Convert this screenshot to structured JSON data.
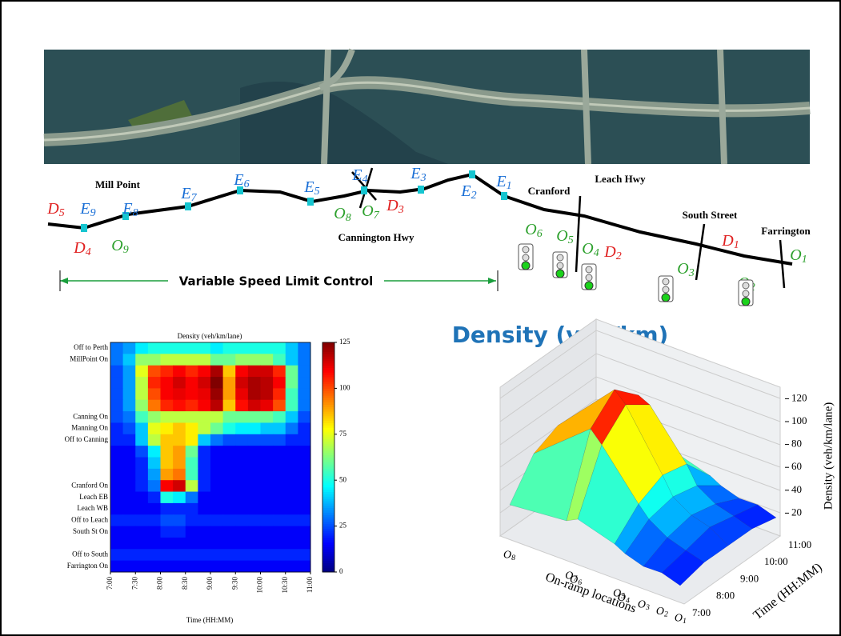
{
  "map": {
    "sensors": [
      {
        "base": "E",
        "sub": "9"
      },
      {
        "base": "E",
        "sub": "8"
      },
      {
        "base": "E",
        "sub": "7"
      },
      {
        "base": "E",
        "sub": "6"
      },
      {
        "base": "E",
        "sub": "5"
      },
      {
        "base": "E",
        "sub": "4"
      },
      {
        "base": "E",
        "sub": "3"
      },
      {
        "base": "E",
        "sub": "2"
      },
      {
        "base": "E",
        "sub": "1"
      }
    ],
    "offramps": [
      {
        "base": "D",
        "sub": "5"
      },
      {
        "base": "D",
        "sub": "4"
      },
      {
        "base": "D",
        "sub": "3"
      },
      {
        "base": "D",
        "sub": "2"
      },
      {
        "base": "D",
        "sub": "1"
      }
    ],
    "onramps": [
      {
        "base": "O",
        "sub": "9"
      },
      {
        "base": "O",
        "sub": "8"
      },
      {
        "base": "O",
        "sub": "7"
      },
      {
        "base": "O",
        "sub": "6"
      },
      {
        "base": "O",
        "sub": "5"
      },
      {
        "base": "O",
        "sub": "4"
      },
      {
        "base": "O",
        "sub": "3"
      },
      {
        "base": "O",
        "sub": "2"
      },
      {
        "base": "O",
        "sub": "1"
      }
    ],
    "places": [
      "Mill Point",
      "Cannington Hwy",
      "Cranford",
      "Leach Hwy",
      "South Street",
      "Farrington"
    ],
    "control_label": "Variable Speed Limit Control"
  },
  "chart_data": [
    {
      "type": "heatmap",
      "title": "Density (veh/km/lane)",
      "xlabel": "Time (HH:MM)",
      "xticks": [
        "7:00",
        "7:30",
        "8:00",
        "8:30",
        "9:00",
        "9:30",
        "10:00",
        "10:30",
        "11:00"
      ],
      "categories": [
        "Off to Perth",
        "MillPoint On",
        null,
        null,
        null,
        null,
        "Canning On",
        "Manning On",
        "Off to Canning",
        null,
        null,
        null,
        "Cranford On",
        "Leach EB",
        "Leach WB",
        "Off to Leach",
        "South St On",
        null,
        "Off to South",
        "Farrington On"
      ],
      "values": [
        [
          30,
          35,
          45,
          50,
          50,
          50,
          50,
          50,
          45,
          50,
          50,
          50,
          50,
          50,
          40,
          30
        ],
        [
          30,
          40,
          65,
          65,
          70,
          70,
          70,
          70,
          60,
          60,
          65,
          65,
          65,
          55,
          40,
          30
        ],
        [
          25,
          35,
          75,
          100,
          105,
          110,
          105,
          110,
          120,
          85,
          110,
          115,
          115,
          105,
          60,
          30
        ],
        [
          25,
          35,
          70,
          105,
          110,
          115,
          110,
          115,
          125,
          90,
          115,
          120,
          118,
          110,
          60,
          30
        ],
        [
          25,
          35,
          70,
          100,
          110,
          112,
          110,
          112,
          122,
          90,
          112,
          120,
          118,
          105,
          55,
          30
        ],
        [
          25,
          35,
          65,
          95,
          105,
          108,
          105,
          110,
          118,
          85,
          108,
          115,
          112,
          100,
          55,
          30
        ],
        [
          25,
          30,
          55,
          65,
          70,
          70,
          70,
          70,
          70,
          60,
          60,
          60,
          60,
          55,
          40,
          25
        ],
        [
          20,
          25,
          40,
          75,
          80,
          85,
          80,
          70,
          60,
          50,
          45,
          45,
          40,
          40,
          30,
          20
        ],
        [
          20,
          20,
          40,
          70,
          85,
          85,
          80,
          40,
          30,
          25,
          25,
          25,
          25,
          25,
          20,
          20
        ],
        [
          15,
          15,
          25,
          45,
          85,
          90,
          60,
          20,
          15,
          15,
          15,
          15,
          15,
          15,
          15,
          15
        ],
        [
          15,
          15,
          20,
          40,
          85,
          90,
          55,
          20,
          15,
          15,
          15,
          15,
          15,
          15,
          15,
          15
        ],
        [
          15,
          15,
          20,
          35,
          90,
          95,
          55,
          20,
          15,
          15,
          15,
          15,
          15,
          15,
          15,
          15
        ],
        [
          15,
          15,
          20,
          30,
          110,
          115,
          70,
          20,
          15,
          15,
          15,
          15,
          15,
          15,
          15,
          15
        ],
        [
          15,
          15,
          15,
          20,
          50,
          45,
          30,
          15,
          15,
          15,
          15,
          15,
          15,
          15,
          15,
          15
        ],
        [
          15,
          15,
          15,
          15,
          20,
          20,
          20,
          15,
          15,
          15,
          15,
          15,
          15,
          15,
          15,
          15
        ],
        [
          20,
          20,
          20,
          20,
          25,
          25,
          20,
          20,
          20,
          20,
          20,
          20,
          20,
          20,
          20,
          20
        ],
        [
          15,
          15,
          15,
          15,
          20,
          20,
          15,
          15,
          15,
          15,
          15,
          15,
          15,
          15,
          15,
          15
        ],
        [
          15,
          15,
          15,
          15,
          15,
          15,
          15,
          15,
          15,
          15,
          15,
          15,
          15,
          15,
          15,
          15
        ],
        [
          20,
          20,
          20,
          20,
          20,
          20,
          20,
          20,
          20,
          20,
          20,
          20,
          20,
          20,
          20,
          20
        ],
        [
          15,
          15,
          15,
          15,
          15,
          15,
          15,
          15,
          15,
          15,
          15,
          15,
          15,
          15,
          15,
          15
        ]
      ],
      "colormap": "jet",
      "clim": [
        0,
        125
      ],
      "cticks": [
        0,
        25,
        50,
        75,
        100,
        125
      ]
    },
    {
      "type": "surface3d",
      "title": "Density (veh/km)",
      "xlabel": "On-ramp locations",
      "ylabel": "Time (HH:MM)",
      "zlabel": "Density (veh/km/lane)",
      "categories": [
        {
          "base": "O",
          "sub": "8"
        },
        {
          "base": "O",
          "sub": "7"
        },
        {
          "base": "O",
          "sub": "6"
        },
        {
          "base": "O",
          "sub": "5"
        },
        {
          "base": "O",
          "sub": "4"
        },
        {
          "base": "O",
          "sub": "3"
        },
        {
          "base": "O",
          "sub": "2"
        },
        {
          "base": "O",
          "sub": "1"
        }
      ],
      "times": [
        "7:00",
        "8:00",
        "9:00",
        "10:00",
        "11:00"
      ],
      "values": [
        [
          30,
          35,
          40,
          30,
          25,
          20,
          20,
          15
        ],
        [
          60,
          100,
          90,
          50,
          40,
          30,
          25,
          20
        ],
        [
          70,
          120,
          110,
          60,
          45,
          35,
          30,
          20
        ],
        [
          55,
          100,
          95,
          55,
          40,
          30,
          25,
          20
        ],
        [
          30,
          40,
          40,
          30,
          25,
          20,
          20,
          15
        ]
      ],
      "zlim": [
        0,
        130
      ],
      "zticks": [
        20,
        40,
        60,
        80,
        100,
        120
      ],
      "colormap": "jet",
      "clim": [
        0,
        125
      ]
    }
  ]
}
